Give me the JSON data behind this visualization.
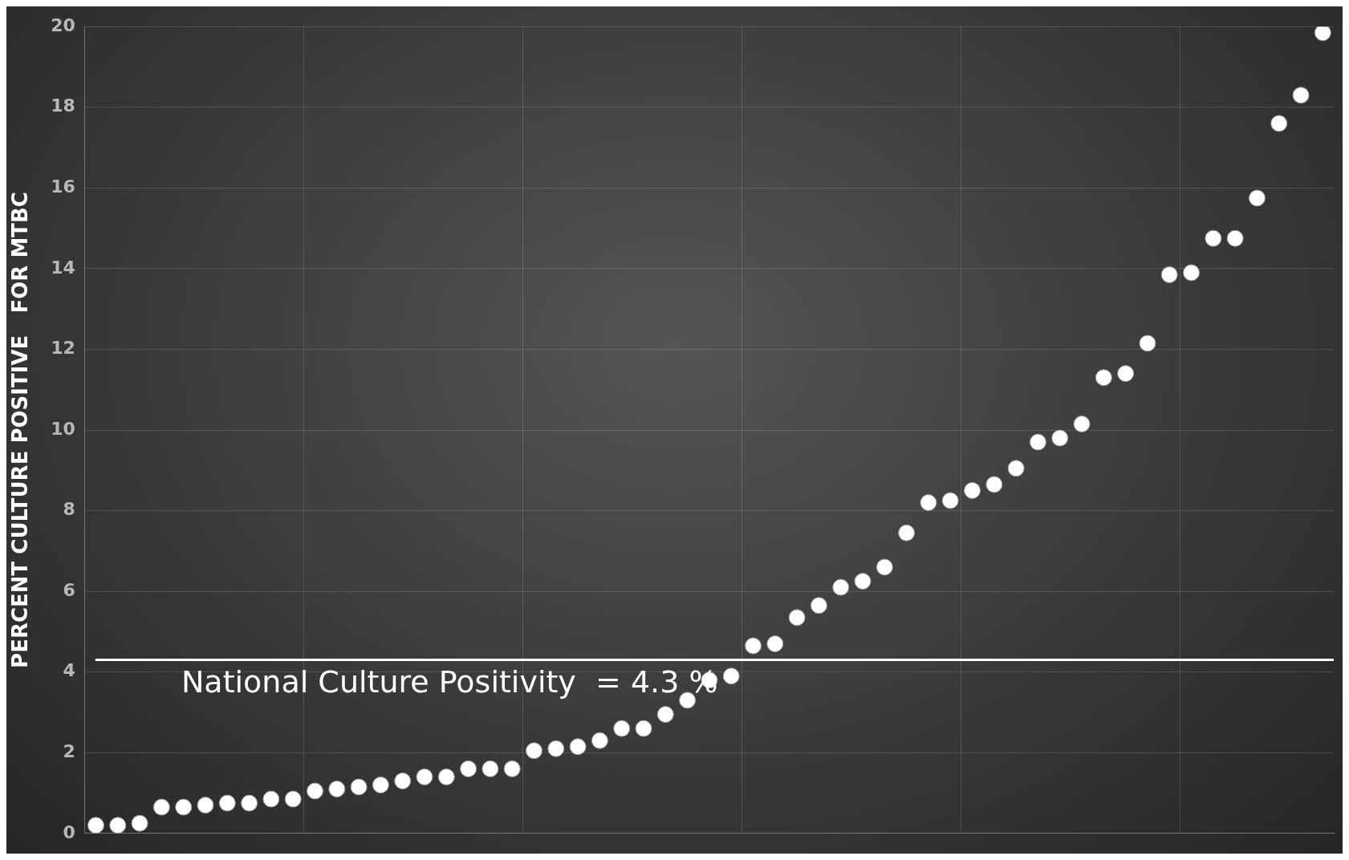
{
  "chart_data": {
    "type": "scatter",
    "ylabel": "PERCENT CULTURE POSITIVE   FOR MTBC",
    "categories": [
      null,
      null,
      null,
      null,
      null,
      null,
      null,
      null,
      null,
      null,
      null,
      null,
      null,
      null,
      null,
      null,
      null,
      null,
      null,
      null,
      null,
      null,
      null,
      null,
      null,
      null,
      null,
      null,
      null,
      null,
      null,
      null,
      null,
      null,
      null,
      null,
      null,
      null,
      null,
      null,
      null,
      null,
      null,
      null,
      null,
      null,
      null,
      null,
      null,
      null,
      null,
      null,
      null,
      null,
      null,
      null,
      null
    ],
    "series": [
      {
        "color": "#ffffff",
        "values": [
          0.2,
          0.2,
          0.25,
          0.65,
          0.65,
          0.7,
          0.75,
          0.75,
          0.85,
          0.85,
          1.05,
          1.1,
          1.15,
          1.2,
          1.3,
          1.4,
          1.4,
          1.6,
          1.6,
          1.6,
          2.05,
          2.1,
          2.15,
          2.3,
          2.6,
          2.6,
          2.95,
          3.3,
          3.8,
          3.9,
          4.65,
          4.7,
          5.35,
          5.65,
          6.1,
          6.25,
          6.6,
          7.45,
          8.2,
          8.25,
          8.5,
          8.65,
          9.05,
          9.7,
          9.8,
          10.15,
          11.3,
          11.4,
          12.15,
          13.85,
          13.9,
          14.75,
          14.75,
          15.75,
          17.6,
          18.3,
          19.85
        ]
      }
    ],
    "ylim": [
      0,
      20
    ],
    "yticks": [
      0,
      2,
      4,
      6,
      8,
      10,
      12,
      14,
      16,
      18,
      20
    ],
    "ref_lines": [
      {
        "axis": "y",
        "value": 4.3,
        "label": "National Culture Positivity  = 4.3 %",
        "color": "#ffffff"
      }
    ],
    "grid": true,
    "marker": "circle",
    "legend": false
  }
}
